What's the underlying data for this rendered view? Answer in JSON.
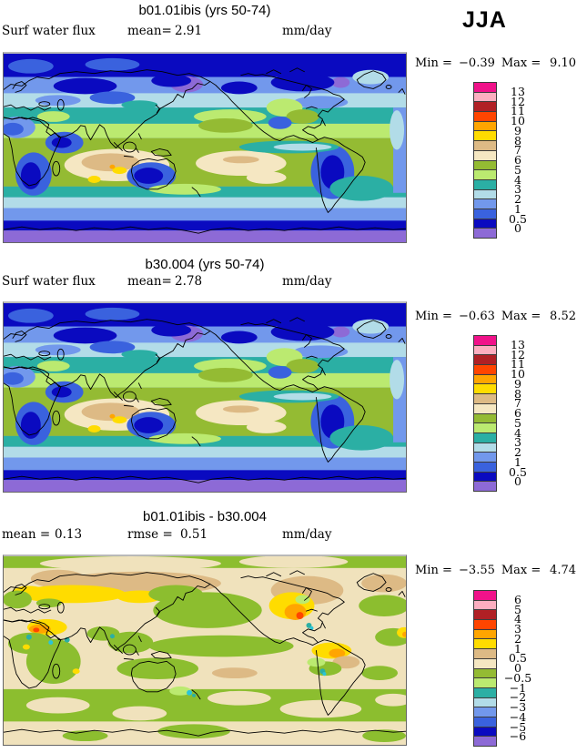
{
  "figure": {
    "season_label": "JJA"
  },
  "panels": [
    {
      "id": "b01.01ibis",
      "title": "b01.01ibis (yrs 50-74)",
      "stats": {
        "field_label": "Surf water flux",
        "mean_label": "mean=",
        "mean_value": "2.91",
        "units": "mm/day"
      },
      "minmax": {
        "min_label": "Min =",
        "min_value": "−0.39",
        "max_label": "Max =",
        "max_value": "9.10"
      },
      "colorbar": {
        "labels": [
          "13",
          "12",
          "11",
          "10",
          "9",
          "8",
          "7",
          "6",
          "5",
          "4",
          "3",
          "2",
          "1",
          "0.5",
          "0"
        ],
        "colors": [
          "#F0128A",
          "#FCAEC0",
          "#B02025",
          "#FF4500",
          "#FFA500",
          "#FFDC00",
          "#DDBA85",
          "#F5E7C2",
          "#94BB33",
          "#BBEA70",
          "#2BAFA4",
          "#B2DCE8",
          "#7298EC",
          "#3A62DE",
          "#0A0AC0",
          "#8D6AD6"
        ]
      }
    },
    {
      "id": "b30.004",
      "title": "b30.004 (yrs 50-74)",
      "stats": {
        "field_label": "Surf water flux",
        "mean_label": "mean=",
        "mean_value": "2.78",
        "units": "mm/day"
      },
      "minmax": {
        "min_label": "Min =",
        "min_value": "−0.63",
        "max_label": "Max =",
        "max_value": "8.52"
      },
      "colorbar": {
        "labels": [
          "13",
          "12",
          "11",
          "10",
          "9",
          "8",
          "7",
          "6",
          "5",
          "4",
          "3",
          "2",
          "1",
          "0.5",
          "0"
        ],
        "colors": [
          "#F0128A",
          "#FCAEC0",
          "#B02025",
          "#FF4500",
          "#FFA500",
          "#FFDC00",
          "#DDBA85",
          "#F5E7C2",
          "#94BB33",
          "#BBEA70",
          "#2BAFA4",
          "#B2DCE8",
          "#7298EC",
          "#3A62DE",
          "#0A0AC0",
          "#8D6AD6"
        ]
      }
    },
    {
      "id": "difference",
      "title": "b01.01ibis - b30.004",
      "stats": {
        "mean_label": "mean =",
        "mean_value": "0.13",
        "rmse_label": "rmse =",
        "rmse_value": "0.51",
        "units": "mm/day"
      },
      "minmax": {
        "min_label": "Min =",
        "min_value": "−3.55",
        "max_label": "Max =",
        "max_value": "4.74"
      },
      "colorbar": {
        "labels": [
          "6",
          "5",
          "4",
          "3",
          "2",
          "1",
          "0.5",
          "0",
          "−0.5",
          "−1",
          "−2",
          "−3",
          "−4",
          "−5",
          "−6"
        ],
        "colors": [
          "#F0128A",
          "#FCAEC0",
          "#B02025",
          "#FF4500",
          "#FFA500",
          "#FFDC00",
          "#DDBA85",
          "#F5E7C2",
          "#94BB33",
          "#BBEA70",
          "#2BAFA4",
          "#B2DCE8",
          "#7298EC",
          "#3A62DE",
          "#0A0AC0",
          "#8D6AD6"
        ]
      }
    }
  ],
  "chart_data": [
    {
      "type": "heatmap",
      "subtype": "global-filled-contour-map",
      "title": "b01.01ibis (yrs 50-74)",
      "variable": "Surf water flux",
      "units": "mm/day",
      "season": "JJA",
      "mean": 2.91,
      "min": -0.39,
      "max": 9.1,
      "contour_levels": [
        0,
        0.5,
        1,
        2,
        3,
        4,
        5,
        6,
        7,
        8,
        9,
        10,
        11,
        12,
        13
      ],
      "palette_low_to_high": [
        "#8D6AD6",
        "#0A0AC0",
        "#3A62DE",
        "#7298EC",
        "#B2DCE8",
        "#2BAFA4",
        "#BBEA70",
        "#94BB33",
        "#F5E7C2",
        "#DDBA85",
        "#FFDC00",
        "#FFA500",
        "#FF4500",
        "#B02025",
        "#FCAEC0",
        "#F0128A"
      ],
      "projection": "cylindrical equirectangular, Pacific-centered",
      "pattern_summary": "High flux (greens/tans 4-8 mm/day) in tropics and ITCZ; beige/tan maxima over Indian Ocean and central Pacific subtropics; low flux (blues <1, purple <0) at poles and over Australia, southern Africa, Arabia, eastern South America"
    },
    {
      "type": "heatmap",
      "subtype": "global-filled-contour-map",
      "title": "b30.004 (yrs 50-74)",
      "variable": "Surf water flux",
      "units": "mm/day",
      "season": "JJA",
      "mean": 2.78,
      "min": -0.63,
      "max": 8.52,
      "contour_levels": [
        0,
        0.5,
        1,
        2,
        3,
        4,
        5,
        6,
        7,
        8,
        9,
        10,
        11,
        12,
        13
      ],
      "palette_low_to_high": [
        "#8D6AD6",
        "#0A0AC0",
        "#3A62DE",
        "#7298EC",
        "#B2DCE8",
        "#2BAFA4",
        "#BBEA70",
        "#94BB33",
        "#F5E7C2",
        "#DDBA85",
        "#FFDC00",
        "#FFA500",
        "#FF4500",
        "#B02025",
        "#FCAEC0",
        "#F0128A"
      ],
      "projection": "cylindrical equirectangular, Pacific-centered",
      "pattern_summary": "Very similar zonal structure to b01.01ibis: polar blues/purple, tropical greens, subtropical beige/tan maxima"
    },
    {
      "type": "heatmap",
      "subtype": "global-filled-contour-difference-map",
      "title": "b01.01ibis - b30.004",
      "variable": "Surf water flux difference",
      "units": "mm/day",
      "season": "JJA",
      "mean": 0.13,
      "rmse": 0.51,
      "min": -3.55,
      "max": 4.74,
      "contour_levels": [
        -6,
        -5,
        -4,
        -3,
        -2,
        -1,
        -0.5,
        0,
        0.5,
        1,
        2,
        3,
        4,
        5,
        6
      ],
      "palette_low_to_high": [
        "#8D6AD6",
        "#0A0AC0",
        "#3A62DE",
        "#7298EC",
        "#B2DCE8",
        "#2BAFA4",
        "#BBEA70",
        "#94BB33",
        "#F5E7C2",
        "#DDBA85",
        "#FFDC00",
        "#FFA500",
        "#FF4500",
        "#B02025",
        "#FCAEC0",
        "#F0128A"
      ],
      "projection": "cylindrical equirectangular, Pacific-centered",
      "pattern_summary": "Mostly near-zero (beige 0 to 0.5 and olive -0.5 to 0); positive anomalies (yellow/orange 1-4) over Siberia-Europe, eastern North America, Middle East and tropical South America; scattered small negative teal/cyan spots"
    }
  ]
}
